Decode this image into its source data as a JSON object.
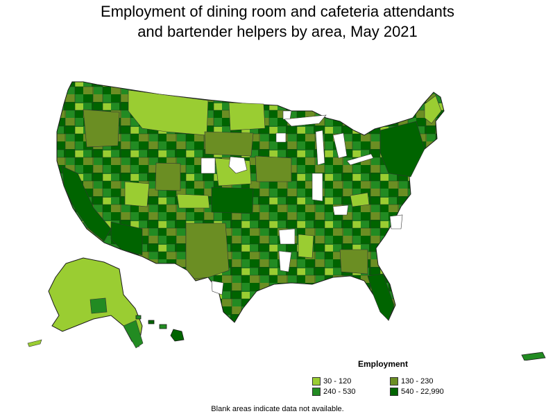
{
  "title_line1": "Employment of dining room and cafeteria attendants",
  "title_line2": "and bartender helpers by area, May 2021",
  "legend": {
    "title": "Employment",
    "items": [
      {
        "label": "30 - 120",
        "color": "#9acd32"
      },
      {
        "label": "130 - 230",
        "color": "#6b8e23"
      },
      {
        "label": "240 - 530",
        "color": "#228b22"
      },
      {
        "label": "540 - 22,990",
        "color": "#006400"
      }
    ]
  },
  "footnote": "Blank areas indicate data not available."
}
